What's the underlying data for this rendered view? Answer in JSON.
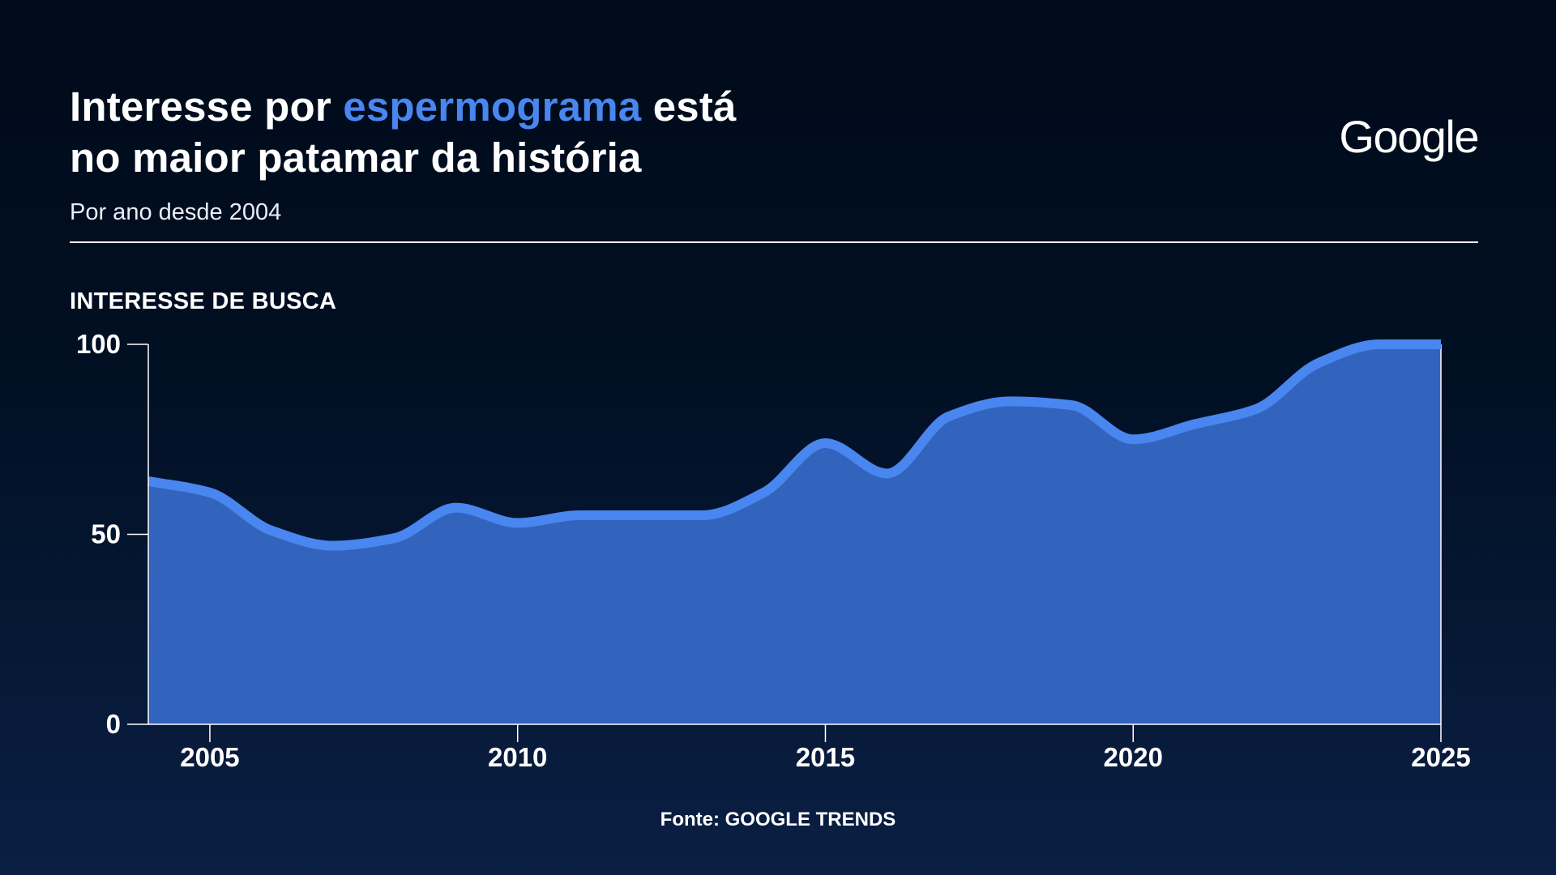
{
  "header": {
    "title_pre": "Interesse por ",
    "title_highlight": "espermograma",
    "title_post": " está",
    "title_line2": "no maior patamar da história",
    "subtitle": "Por ano desde 2004"
  },
  "brand": {
    "logo_text": "Google"
  },
  "footer": {
    "source": "Fonte: GOOGLE TRENDS"
  },
  "colors": {
    "background_top": "#000b1a",
    "background_bottom": "#0a1f44",
    "accent": "#4a86f0",
    "area_fill": "#3264be",
    "line": "#4a86f0",
    "text": "#ffffff"
  },
  "chart_data": {
    "type": "area",
    "title": "",
    "xlabel": "",
    "ylabel": "INTERESSE DE BUSCA",
    "xlim": [
      2004,
      2025
    ],
    "ylim": [
      0,
      100
    ],
    "x_ticks": [
      2005,
      2010,
      2015,
      2020,
      2025
    ],
    "y_ticks": [
      0,
      50,
      100
    ],
    "grid": false,
    "legend": "none",
    "x": [
      2004,
      2005,
      2006,
      2007,
      2008,
      2009,
      2010,
      2011,
      2012,
      2013,
      2014,
      2015,
      2016,
      2017,
      2018,
      2019,
      2020,
      2021,
      2022,
      2023,
      2024,
      2025
    ],
    "values": [
      64,
      61,
      51,
      47,
      49,
      57,
      53,
      55,
      55,
      55,
      61,
      74,
      66,
      81,
      85,
      84,
      75,
      79,
      83,
      95,
      100,
      100
    ]
  }
}
